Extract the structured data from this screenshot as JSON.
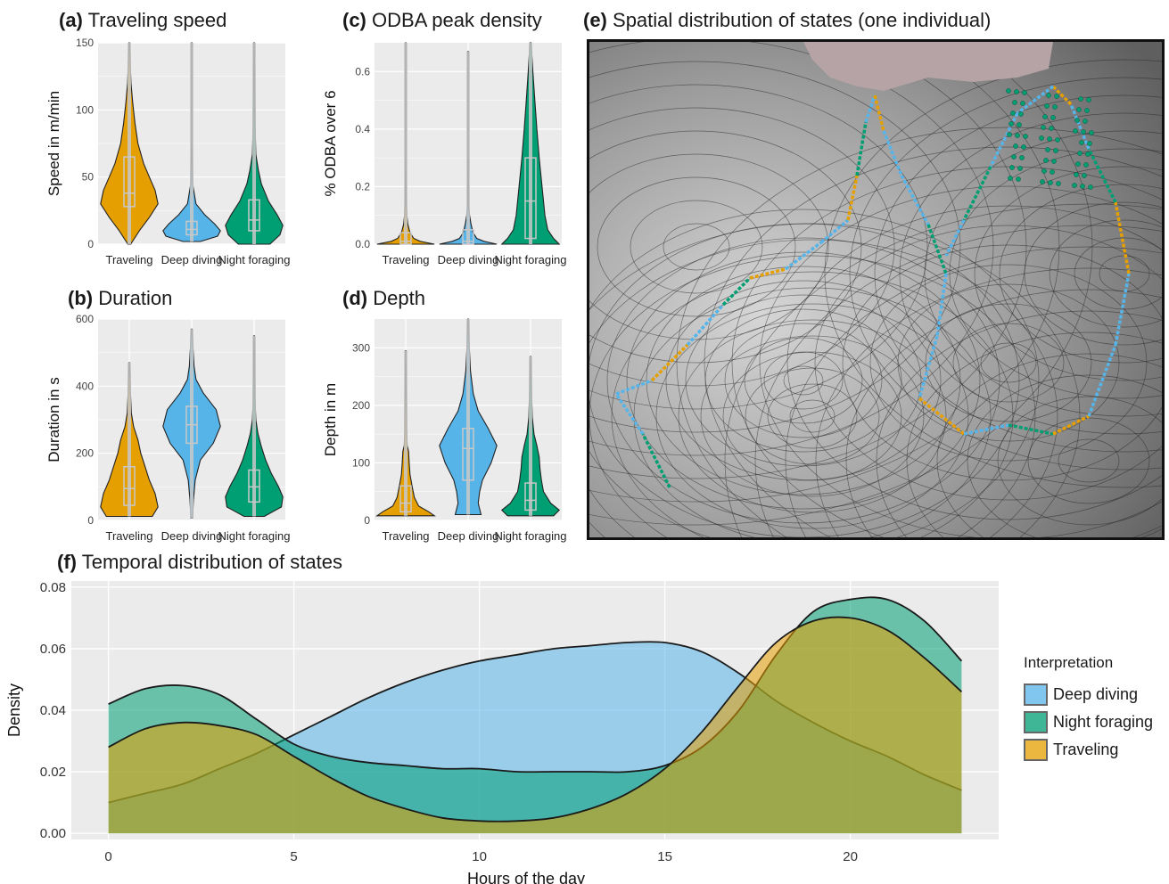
{
  "colors": {
    "traveling": "#E69F00",
    "deep_diving": "#56B4E9",
    "night_foraging": "#009E73",
    "panel_bg": "#EBEBEB",
    "grid": "#FFFFFF",
    "box": "#C8C8C8",
    "land": "#B5A3A6"
  },
  "panels": {
    "a": {
      "letter": "(a)",
      "title": "Traveling speed"
    },
    "b": {
      "letter": "(b)",
      "title": "Duration"
    },
    "c": {
      "letter": "(c)",
      "title": "ODBA peak density"
    },
    "d": {
      "letter": "(d)",
      "title": "Depth"
    },
    "e": {
      "letter": "(e)",
      "title": "Spatial distribution of states (one individual)"
    },
    "f": {
      "letter": "(f)",
      "title": "Temporal distribution of states"
    }
  },
  "legend": {
    "title": "Interpretation",
    "items": [
      {
        "label": "Deep diving",
        "color": "#56B4E9"
      },
      {
        "label": "Night foraging",
        "color": "#009E73"
      },
      {
        "label": "Traveling",
        "color": "#E69F00"
      }
    ]
  },
  "chart_data": [
    {
      "id": "a",
      "type": "violin",
      "title": "Traveling speed",
      "ylabel": "Speed in m/min",
      "ylim": [
        0,
        150
      ],
      "yticks": [
        0,
        50,
        100,
        150
      ],
      "categories": [
        "Traveling",
        "Deep diving",
        "Night foraging"
      ],
      "series": [
        {
          "name": "Traveling",
          "range": [
            0,
            150
          ],
          "box": [
            28,
            38,
            65
          ],
          "shape": [
            [
              0,
              0.05
            ],
            [
              10,
              0.35
            ],
            [
              20,
              0.7
            ],
            [
              30,
              1
            ],
            [
              40,
              0.9
            ],
            [
              50,
              0.7
            ],
            [
              60,
              0.5
            ],
            [
              75,
              0.3
            ],
            [
              90,
              0.2
            ],
            [
              105,
              0.12
            ],
            [
              120,
              0.06
            ],
            [
              135,
              0.03
            ],
            [
              150,
              0.01
            ]
          ]
        },
        {
          "name": "Deep diving",
          "range": [
            2,
            150
          ],
          "box": [
            7,
            11,
            17
          ],
          "shape": [
            [
              2,
              0.3
            ],
            [
              6,
              0.9
            ],
            [
              10,
              1
            ],
            [
              15,
              0.8
            ],
            [
              22,
              0.45
            ],
            [
              30,
              0.15
            ],
            [
              45,
              0.03
            ],
            [
              75,
              0.01
            ],
            [
              150,
              0.01
            ]
          ]
        },
        {
          "name": "Night foraging",
          "range": [
            0,
            150
          ],
          "box": [
            10,
            18,
            33
          ],
          "shape": [
            [
              0,
              0.55
            ],
            [
              7,
              0.9
            ],
            [
              14,
              1
            ],
            [
              22,
              0.8
            ],
            [
              32,
              0.5
            ],
            [
              45,
              0.25
            ],
            [
              55,
              0.15
            ],
            [
              67,
              0.06
            ],
            [
              90,
              0.03
            ],
            [
              120,
              0.02
            ],
            [
              150,
              0.01
            ]
          ]
        }
      ]
    },
    {
      "id": "b",
      "type": "violin",
      "title": "Duration",
      "ylabel": "Duration in s",
      "ylim": [
        0,
        600
      ],
      "yticks": [
        0,
        200,
        400,
        600
      ],
      "categories": [
        "Traveling",
        "Deep diving",
        "Night foraging"
      ],
      "series": [
        {
          "name": "Traveling",
          "range": [
            12,
            470
          ],
          "box": [
            45,
            95,
            160
          ],
          "shape": [
            [
              12,
              0.8
            ],
            [
              40,
              1
            ],
            [
              80,
              0.9
            ],
            [
              120,
              0.7
            ],
            [
              160,
              0.55
            ],
            [
              200,
              0.4
            ],
            [
              240,
              0.3
            ],
            [
              280,
              0.15
            ],
            [
              320,
              0.07
            ],
            [
              380,
              0.04
            ],
            [
              440,
              0.02
            ],
            [
              470,
              0.01
            ]
          ]
        },
        {
          "name": "Deep diving",
          "range": [
            8,
            570
          ],
          "box": [
            230,
            285,
            340
          ],
          "shape": [
            [
              8,
              0.03
            ],
            [
              60,
              0.06
            ],
            [
              120,
              0.12
            ],
            [
              180,
              0.3
            ],
            [
              230,
              0.75
            ],
            [
              280,
              1
            ],
            [
              330,
              0.85
            ],
            [
              380,
              0.4
            ],
            [
              420,
              0.15
            ],
            [
              460,
              0.08
            ],
            [
              520,
              0.04
            ],
            [
              570,
              0.01
            ]
          ]
        },
        {
          "name": "Night foraging",
          "range": [
            12,
            550
          ],
          "box": [
            55,
            100,
            150
          ],
          "shape": [
            [
              12,
              0.35
            ],
            [
              40,
              0.95
            ],
            [
              70,
              1
            ],
            [
              100,
              0.85
            ],
            [
              140,
              0.6
            ],
            [
              180,
              0.4
            ],
            [
              220,
              0.25
            ],
            [
              260,
              0.13
            ],
            [
              300,
              0.06
            ],
            [
              360,
              0.03
            ],
            [
              450,
              0.02
            ],
            [
              550,
              0.01
            ]
          ]
        }
      ]
    },
    {
      "id": "c",
      "type": "violin",
      "title": "ODBA peak density",
      "ylabel": "% ODBA over 6",
      "ylim": [
        0,
        0.7
      ],
      "yticks": [
        0.0,
        0.2,
        0.4,
        0.6
      ],
      "categories": [
        "Traveling",
        "Deep diving",
        "Night foraging"
      ],
      "series": [
        {
          "name": "Traveling",
          "range": [
            0,
            0.7
          ],
          "box": [
            0,
            0.01,
            0.04
          ],
          "shape": [
            [
              0,
              1
            ],
            [
              0.01,
              0.5
            ],
            [
              0.02,
              0.28
            ],
            [
              0.04,
              0.15
            ],
            [
              0.07,
              0.07
            ],
            [
              0.1,
              0.04
            ],
            [
              0.14,
              0.02
            ],
            [
              0.3,
              0.01
            ],
            [
              0.7,
              0.01
            ]
          ]
        },
        {
          "name": "Deep diving",
          "range": [
            0,
            0.67
          ],
          "box": [
            0,
            0.01,
            0.05
          ],
          "shape": [
            [
              0,
              1
            ],
            [
              0.01,
              0.55
            ],
            [
              0.02,
              0.3
            ],
            [
              0.04,
              0.17
            ],
            [
              0.07,
              0.1
            ],
            [
              0.1,
              0.05
            ],
            [
              0.13,
              0.02
            ],
            [
              0.3,
              0.01
            ],
            [
              0.67,
              0.01
            ]
          ]
        },
        {
          "name": "Night foraging",
          "range": [
            0,
            0.7
          ],
          "box": [
            0.02,
            0.15,
            0.3
          ],
          "shape": [
            [
              0,
              1
            ],
            [
              0.02,
              0.8
            ],
            [
              0.05,
              0.6
            ],
            [
              0.1,
              0.5
            ],
            [
              0.15,
              0.45
            ],
            [
              0.2,
              0.4
            ],
            [
              0.25,
              0.35
            ],
            [
              0.3,
              0.3
            ],
            [
              0.4,
              0.22
            ],
            [
              0.5,
              0.15
            ],
            [
              0.6,
              0.08
            ],
            [
              0.7,
              0.02
            ]
          ]
        }
      ]
    },
    {
      "id": "d",
      "type": "violin",
      "title": "Depth",
      "ylabel": "Depth in m",
      "ylim": [
        0,
        350
      ],
      "yticks": [
        0,
        100,
        200,
        300
      ],
      "categories": [
        "Traveling",
        "Deep diving",
        "Night foraging"
      ],
      "series": [
        {
          "name": "Traveling",
          "range": [
            8,
            295
          ],
          "box": [
            15,
            30,
            60
          ],
          "shape": [
            [
              8,
              1
            ],
            [
              15,
              0.8
            ],
            [
              25,
              0.45
            ],
            [
              40,
              0.3
            ],
            [
              60,
              0.22
            ],
            [
              80,
              0.15
            ],
            [
              100,
              0.12
            ],
            [
              120,
              0.1
            ],
            [
              130,
              0.05
            ],
            [
              160,
              0.03
            ],
            [
              220,
              0.02
            ],
            [
              295,
              0.01
            ]
          ]
        },
        {
          "name": "Deep diving",
          "range": [
            10,
            350
          ],
          "box": [
            70,
            125,
            160
          ],
          "shape": [
            [
              10,
              0.45
            ],
            [
              30,
              0.35
            ],
            [
              50,
              0.4
            ],
            [
              70,
              0.5
            ],
            [
              100,
              0.8
            ],
            [
              130,
              1
            ],
            [
              160,
              0.7
            ],
            [
              190,
              0.35
            ],
            [
              220,
              0.18
            ],
            [
              260,
              0.08
            ],
            [
              300,
              0.04
            ],
            [
              350,
              0.01
            ]
          ]
        },
        {
          "name": "Night foraging",
          "range": [
            8,
            285
          ],
          "box": [
            18,
            35,
            65
          ],
          "shape": [
            [
              8,
              0.8
            ],
            [
              18,
              1
            ],
            [
              30,
              0.7
            ],
            [
              50,
              0.45
            ],
            [
              70,
              0.38
            ],
            [
              90,
              0.33
            ],
            [
              110,
              0.3
            ],
            [
              130,
              0.22
            ],
            [
              150,
              0.12
            ],
            [
              180,
              0.06
            ],
            [
              230,
              0.03
            ],
            [
              285,
              0.01
            ]
          ]
        }
      ]
    },
    {
      "id": "f",
      "type": "area",
      "title": "Temporal distribution of states",
      "xlabel": "Hours of the day",
      "ylabel": "Density",
      "xlim": [
        -1,
        24
      ],
      "ylim": [
        -0.002,
        0.082
      ],
      "xticks": [
        0,
        5,
        10,
        15,
        20
      ],
      "yticks": [
        0.0,
        0.02,
        0.04,
        0.06,
        0.08
      ],
      "series": [
        {
          "name": "Deep diving",
          "x": [
            0,
            1,
            2,
            3,
            4,
            5,
            6,
            7,
            8,
            9,
            10,
            11,
            12,
            13,
            14,
            15,
            16,
            17,
            18,
            19,
            20,
            21,
            22,
            23
          ],
          "values": [
            0.01,
            0.013,
            0.016,
            0.021,
            0.026,
            0.032,
            0.038,
            0.044,
            0.049,
            0.053,
            0.056,
            0.058,
            0.06,
            0.061,
            0.062,
            0.062,
            0.059,
            0.052,
            0.043,
            0.036,
            0.03,
            0.025,
            0.019,
            0.014
          ]
        },
        {
          "name": "Night foraging",
          "x": [
            0,
            1,
            2,
            3,
            4,
            5,
            6,
            7,
            8,
            9,
            10,
            11,
            12,
            13,
            14,
            15,
            16,
            17,
            18,
            19,
            20,
            21,
            22,
            23
          ],
          "values": [
            0.042,
            0.047,
            0.048,
            0.045,
            0.037,
            0.029,
            0.025,
            0.023,
            0.022,
            0.021,
            0.021,
            0.02,
            0.02,
            0.02,
            0.02,
            0.022,
            0.028,
            0.04,
            0.058,
            0.072,
            0.076,
            0.076,
            0.069,
            0.056
          ]
        },
        {
          "name": "Traveling",
          "x": [
            0,
            1,
            2,
            3,
            4,
            5,
            6,
            7,
            8,
            9,
            10,
            11,
            12,
            13,
            14,
            15,
            16,
            17,
            18,
            19,
            20,
            21,
            22,
            23
          ],
          "values": [
            0.028,
            0.034,
            0.036,
            0.035,
            0.032,
            0.025,
            0.018,
            0.012,
            0.008,
            0.005,
            0.004,
            0.004,
            0.005,
            0.008,
            0.013,
            0.021,
            0.033,
            0.048,
            0.062,
            0.069,
            0.07,
            0.066,
            0.057,
            0.046
          ]
        }
      ]
    }
  ]
}
